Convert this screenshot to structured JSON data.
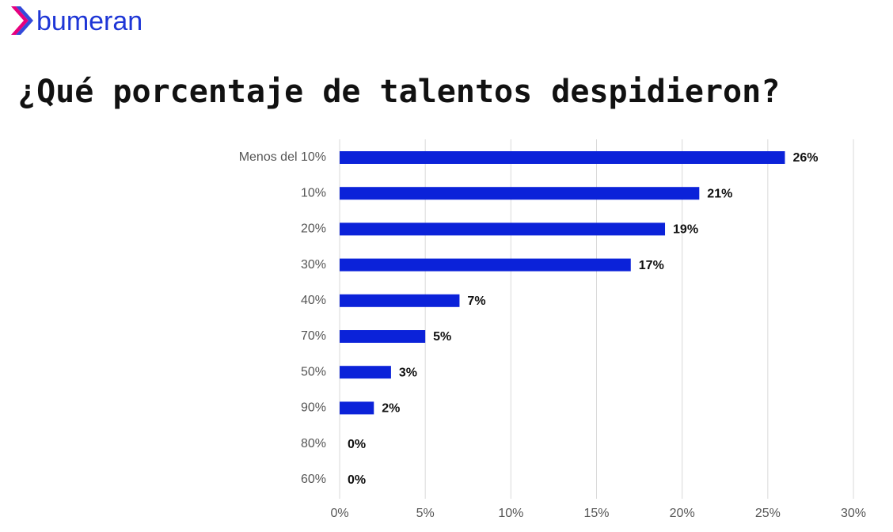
{
  "logo_text": "bumeran",
  "chart_data": {
    "type": "hbar",
    "title": "¿Qué porcentaje de talentos despidieron?",
    "categories": [
      "Menos del 10%",
      "10%",
      "20%",
      "30%",
      "40%",
      "70%",
      "50%",
      "90%",
      "80%",
      "60%"
    ],
    "values": [
      26,
      21,
      19,
      17,
      7,
      5,
      3,
      2,
      0,
      0
    ],
    "value_labels": [
      "26%",
      "21%",
      "19%",
      "17%",
      "7%",
      "5%",
      "3%",
      "2%",
      "0%",
      "0%"
    ],
    "color": "#0b22d9",
    "xlim": [
      0,
      30
    ],
    "xticks": [
      {
        "value": 0,
        "label": "0%"
      },
      {
        "value": 5,
        "label": "5%"
      },
      {
        "value": 10,
        "label": "10%"
      },
      {
        "value": 15,
        "label": "15%"
      },
      {
        "value": 20,
        "label": "20%"
      },
      {
        "value": 25,
        "label": "25%"
      },
      {
        "value": 30,
        "label": "30%"
      }
    ],
    "grid": true
  }
}
